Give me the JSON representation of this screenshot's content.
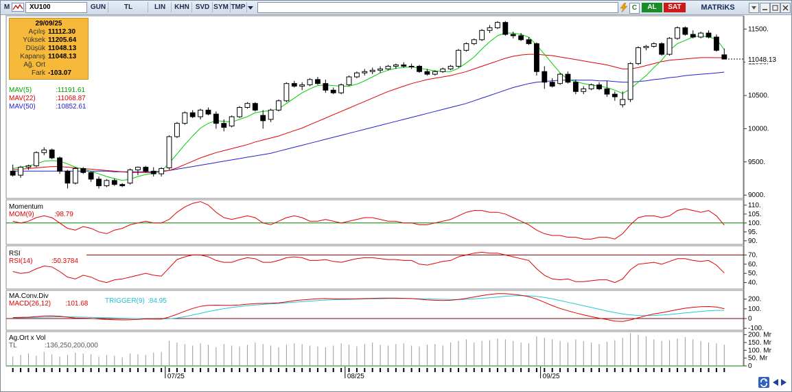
{
  "toolbar": {
    "menu_letter": "M",
    "symbol": "XU100",
    "buttons": [
      "GUN",
      "TL",
      "LIN",
      "KHN",
      "SVD",
      "SYM",
      "TMP"
    ],
    "al_label": "AL",
    "sat_label": "SAT",
    "brand": "MATRiKS",
    "c_label": "C"
  },
  "info_box": {
    "date": "29/09/25",
    "rows": [
      {
        "label": "Açılış",
        "value": "11112.30"
      },
      {
        "label": "Yüksek",
        "value": "11205.64"
      },
      {
        "label": "Düşük",
        "value": "11048.13"
      },
      {
        "label": "Kapanış",
        "value": "11048.13"
      },
      {
        "label": "Ağ. Ort",
        "value": ""
      },
      {
        "label": "Fark",
        "value": "-103.07"
      }
    ]
  },
  "price_panel": {
    "mav5": {
      "label": "MAV(5)",
      "value": ":11191.61",
      "color": "#00c000"
    },
    "mav22": {
      "label": "MAV(22)",
      "value": ":11068.87",
      "color": "#e00000"
    },
    "mav50": {
      "label": "MAV(50)",
      "value": ":10852.61",
      "color": "#2020d0"
    },
    "last_price_tag": "11048.13",
    "axis_ticks": [
      "11500.",
      "11000.",
      "10500.",
      "10000.",
      "9500.",
      "9000."
    ]
  },
  "momentum_panel": {
    "title": "Momentum",
    "indicator": "MOM(9)",
    "value": ":98.79",
    "axis_ticks": [
      "110.",
      "105.",
      "100.",
      "95.",
      "90."
    ]
  },
  "rsi_panel": {
    "title": "RSI",
    "indicator": "RSI(14)",
    "value": ":50.3784",
    "axis_ticks": [
      "70.",
      "60.",
      "50.",
      "40."
    ]
  },
  "macd_panel": {
    "title": "MA.Conv.Div",
    "indicator": "MACD(26,12)",
    "value": ":101.68",
    "trigger": "TRIGGER(9)",
    "trigger_value": ":84.95",
    "axis_ticks": [
      "200.",
      "100.",
      "0",
      "-100."
    ]
  },
  "volume_panel": {
    "title": "Ag.Ort x Vol",
    "unit": "TL",
    "value": ":136,250,200,000",
    "axis_ticks": [
      "200. Mr",
      "150. Mr",
      "100. Mr",
      "50. Mr",
      "0"
    ]
  },
  "date_axis": [
    "07/25",
    "08/25",
    "09/25"
  ],
  "colors": {
    "toolbar_bg": "#d6e0ec",
    "info_bg": "#f6b93a",
    "al_bg": "#1a8c2a",
    "sat_bg": "#cc1a1a",
    "up_candle": "#ffffff",
    "down_candle": "#000000"
  },
  "chart_data": {
    "type": "candlestick",
    "series_ohlc": [
      [
        9360,
        9460,
        9280,
        9300
      ],
      [
        9300,
        9440,
        9260,
        9420
      ],
      [
        9420,
        9460,
        9380,
        9440
      ],
      [
        9440,
        9660,
        9420,
        9640
      ],
      [
        9640,
        9720,
        9600,
        9680
      ],
      [
        9680,
        9700,
        9540,
        9560
      ],
      [
        9560,
        9580,
        9320,
        9360
      ],
      [
        9360,
        9380,
        9100,
        9180
      ],
      [
        9180,
        9420,
        9160,
        9400
      ],
      [
        9400,
        9420,
        9320,
        9340
      ],
      [
        9340,
        9360,
        9200,
        9240
      ],
      [
        9240,
        9280,
        9100,
        9140
      ],
      [
        9140,
        9240,
        9120,
        9220
      ],
      [
        9220,
        9250,
        9140,
        9160
      ],
      [
        9160,
        9180,
        9120,
        9140
      ],
      [
        9180,
        9400,
        9160,
        9380
      ],
      [
        9380,
        9430,
        9300,
        9420
      ],
      [
        9420,
        9440,
        9340,
        9360
      ],
      [
        9360,
        9420,
        9280,
        9320
      ],
      [
        9320,
        9420,
        9280,
        9400
      ],
      [
        9410,
        9900,
        9380,
        9880
      ],
      [
        9880,
        10100,
        9860,
        10080
      ],
      [
        10080,
        10260,
        10060,
        10240
      ],
      [
        10240,
        10280,
        10160,
        10180
      ],
      [
        10180,
        10300,
        10140,
        10280
      ],
      [
        10280,
        10320,
        10200,
        10220
      ],
      [
        10220,
        10260,
        10000,
        10080
      ],
      [
        10080,
        10140,
        9960,
        10020
      ],
      [
        10040,
        10200,
        10020,
        10180
      ],
      [
        10180,
        10340,
        10160,
        10320
      ],
      [
        10320,
        10400,
        10300,
        10380
      ],
      [
        10380,
        10400,
        10260,
        10280
      ],
      [
        10200,
        10280,
        10000,
        10120
      ],
      [
        10140,
        10300,
        10100,
        10280
      ],
      [
        10280,
        10440,
        10260,
        10420
      ],
      [
        10420,
        10700,
        10400,
        10680
      ],
      [
        10680,
        10720,
        10620,
        10640
      ],
      [
        10640,
        10700,
        10580,
        10660
      ],
      [
        10660,
        10760,
        10640,
        10740
      ],
      [
        10740,
        10780,
        10660,
        10680
      ],
      [
        10680,
        10740,
        10540,
        10580
      ],
      [
        10580,
        10620,
        10520,
        10540
      ],
      [
        10540,
        10680,
        10520,
        10660
      ],
      [
        10660,
        10800,
        10640,
        10780
      ],
      [
        10780,
        10860,
        10760,
        10840
      ],
      [
        10840,
        10900,
        10800,
        10860
      ],
      [
        10860,
        10920,
        10820,
        10880
      ],
      [
        10880,
        10940,
        10840,
        10900
      ],
      [
        10900,
        10960,
        10880,
        10940
      ],
      [
        10940,
        10980,
        10900,
        10960
      ],
      [
        10960,
        11000,
        10920,
        10940
      ],
      [
        10940,
        10980,
        10900,
        10940
      ],
      [
        10940,
        10960,
        10840,
        10860
      ],
      [
        10860,
        10900,
        10800,
        10820
      ],
      [
        10820,
        10880,
        10800,
        10860
      ],
      [
        10860,
        10920,
        10840,
        10900
      ],
      [
        10900,
        10960,
        10880,
        10940
      ],
      [
        10940,
        11200,
        10920,
        11180
      ],
      [
        11180,
        11300,
        11160,
        11280
      ],
      [
        11280,
        11360,
        11260,
        11340
      ],
      [
        11340,
        11500,
        11320,
        11480
      ],
      [
        11480,
        11560,
        11440,
        11520
      ],
      [
        11520,
        11620,
        11500,
        11600
      ],
      [
        11600,
        11620,
        11400,
        11420
      ],
      [
        11420,
        11460,
        11360,
        11400
      ],
      [
        11400,
        11440,
        11320,
        11340
      ],
      [
        11340,
        11380,
        11260,
        11280
      ],
      [
        11280,
        11300,
        10800,
        10860
      ],
      [
        10860,
        10940,
        10600,
        10700
      ],
      [
        10700,
        10760,
        10620,
        10640
      ],
      [
        10680,
        10840,
        10660,
        10820
      ],
      [
        10820,
        10860,
        10680,
        10700
      ],
      [
        10700,
        10740,
        10520,
        10560
      ],
      [
        10560,
        10640,
        10520,
        10600
      ],
      [
        10600,
        10680,
        10580,
        10660
      ],
      [
        10660,
        10700,
        10580,
        10600
      ],
      [
        10600,
        10720,
        10480,
        10520
      ],
      [
        10520,
        10560,
        10420,
        10480
      ],
      [
        10360,
        10560,
        10320,
        10440
      ],
      [
        10440,
        11000,
        10400,
        10980
      ],
      [
        10980,
        11240,
        10960,
        11220
      ],
      [
        11220,
        11260,
        11180,
        11240
      ],
      [
        11240,
        11300,
        11220,
        11280
      ],
      [
        11280,
        11300,
        11100,
        11120
      ],
      [
        11120,
        11380,
        11100,
        11360
      ],
      [
        11360,
        11540,
        11340,
        11520
      ],
      [
        11520,
        11540,
        11400,
        11420
      ],
      [
        11420,
        11480,
        11360,
        11380
      ],
      [
        11380,
        11460,
        11360,
        11440
      ],
      [
        11440,
        11480,
        11360,
        11380
      ],
      [
        11380,
        11420,
        11160,
        11180
      ],
      [
        11112.3,
        11205.64,
        11048.13,
        11048.13
      ]
    ],
    "mav5": [
      9400,
      9420,
      9440,
      9470,
      9510,
      9520,
      9510,
      9470,
      9420,
      9390,
      9360,
      9320,
      9280,
      9250,
      9220,
      9240,
      9280,
      9310,
      9330,
      9360,
      9480,
      9620,
      9760,
      9890,
      10010,
      10080,
      10120,
      10110,
      10100,
      10140,
      10180,
      10240,
      10260,
      10270,
      10300,
      10380,
      10460,
      10540,
      10600,
      10650,
      10660,
      10650,
      10640,
      10640,
      10670,
      10720,
      10780,
      10840,
      10880,
      10910,
      10920,
      10930,
      10910,
      10890,
      10870,
      10860,
      10860,
      10910,
      10990,
      11080,
      11200,
      11310,
      11400,
      11440,
      11440,
      11420,
      11380,
      11260,
      11120,
      10980,
      10840,
      10740,
      10710,
      10680,
      10660,
      10640,
      10620,
      10580,
      10530,
      10600,
      10700,
      10800,
      10920,
      11030,
      11180,
      11280,
      11330,
      11380,
      11400,
      11380,
      11350,
      11191.61
    ],
    "mav22": [
      9380,
      9390,
      9400,
      9410,
      9420,
      9430,
      9430,
      9420,
      9410,
      9400,
      9390,
      9380,
      9370,
      9360,
      9350,
      9340,
      9340,
      9340,
      9340,
      9350,
      9370,
      9410,
      9460,
      9510,
      9560,
      9600,
      9640,
      9670,
      9700,
      9730,
      9760,
      9800,
      9830,
      9860,
      9890,
      9930,
      9970,
      10010,
      10060,
      10110,
      10160,
      10210,
      10260,
      10310,
      10360,
      10410,
      10460,
      10510,
      10560,
      10600,
      10640,
      10680,
      10710,
      10740,
      10760,
      10780,
      10800,
      10830,
      10860,
      10900,
      10940,
      10980,
      11020,
      11060,
      11090,
      11110,
      11120,
      11120,
      11110,
      11100,
      11080,
      11060,
      11040,
      11020,
      11000,
      10980,
      10960,
      10930,
      10900,
      10900,
      10920,
      10950,
      10980,
      11010,
      11030,
      11040,
      11050,
      11060,
      11070,
      11070,
      11068.87,
      11068.87
    ],
    "mav50": [
      9360,
      9360,
      9360,
      9360,
      9360,
      9360,
      9360,
      9360,
      9360,
      9360,
      9360,
      9360,
      9360,
      9350,
      9350,
      9350,
      9350,
      9350,
      9350,
      9360,
      9370,
      9390,
      9410,
      9430,
      9450,
      9470,
      9490,
      9510,
      9530,
      9550,
      9570,
      9590,
      9610,
      9630,
      9660,
      9690,
      9720,
      9750,
      9780,
      9810,
      9840,
      9870,
      9900,
      9930,
      9960,
      9990,
      10020,
      10050,
      10080,
      10110,
      10140,
      10170,
      10200,
      10230,
      10260,
      10290,
      10320,
      10350,
      10380,
      10420,
      10460,
      10500,
      10540,
      10580,
      10620,
      10650,
      10680,
      10700,
      10710,
      10720,
      10730,
      10730,
      10730,
      10730,
      10730,
      10720,
      10720,
      10710,
      10700,
      10700,
      10710,
      10720,
      10740,
      10750,
      10770,
      10780,
      10800,
      10810,
      10820,
      10830,
      10840,
      10852.61
    ],
    "momentum": [
      101,
      100,
      101,
      103,
      104,
      103,
      100,
      97,
      96,
      98,
      97,
      95,
      94,
      96,
      97,
      99,
      100,
      101,
      100,
      100,
      102,
      106,
      109,
      111,
      112,
      110,
      106,
      103,
      102,
      103,
      104,
      103,
      100,
      99,
      101,
      103,
      104,
      103,
      101,
      101,
      102,
      101,
      100,
      101,
      102,
      103,
      103,
      102,
      101,
      101,
      100,
      100,
      99,
      99,
      100,
      101,
      102,
      104,
      106,
      107,
      107,
      106,
      106,
      105,
      103,
      101,
      99,
      96,
      94,
      93,
      93,
      92,
      92,
      91,
      91,
      92,
      92,
      91,
      94,
      99,
      103,
      104,
      104,
      103,
      104,
      107,
      108,
      107,
      106,
      107,
      104,
      98.79
    ],
    "rsi": [
      52,
      50,
      51,
      55,
      58,
      57,
      52,
      46,
      44,
      48,
      46,
      42,
      40,
      43,
      44,
      46,
      48,
      50,
      48,
      47,
      56,
      65,
      68,
      70,
      70,
      68,
      64,
      62,
      62,
      65,
      67,
      66,
      62,
      62,
      64,
      67,
      68,
      67,
      64,
      64,
      65,
      63,
      62,
      64,
      66,
      67,
      67,
      66,
      65,
      65,
      64,
      64,
      60,
      59,
      61,
      63,
      64,
      68,
      70,
      72,
      73,
      72,
      72,
      70,
      68,
      66,
      64,
      55,
      48,
      44,
      43,
      44,
      41,
      41,
      42,
      43,
      43,
      40,
      44,
      54,
      60,
      61,
      62,
      60,
      63,
      66,
      66,
      64,
      63,
      64,
      59,
      50.38
    ],
    "macd": [
      10,
      12,
      14,
      20,
      26,
      28,
      24,
      14,
      6,
      4,
      2,
      -4,
      -10,
      -12,
      -14,
      -12,
      -8,
      -4,
      -6,
      -6,
      16,
      44,
      76,
      104,
      126,
      136,
      138,
      136,
      136,
      140,
      148,
      154,
      156,
      158,
      162,
      172,
      184,
      192,
      198,
      204,
      206,
      204,
      202,
      202,
      204,
      206,
      208,
      210,
      210,
      210,
      208,
      206,
      200,
      192,
      188,
      186,
      188,
      196,
      208,
      222,
      236,
      248,
      256,
      256,
      250,
      240,
      226,
      200,
      168,
      134,
      104,
      80,
      58,
      38,
      20,
      4,
      -10,
      -26,
      -30,
      -14,
      8,
      30,
      48,
      60,
      76,
      92,
      106,
      116,
      122,
      124,
      118,
      101.68
    ],
    "trigger": [
      6,
      8,
      10,
      12,
      14,
      16,
      18,
      18,
      16,
      14,
      12,
      10,
      8,
      6,
      4,
      2,
      0,
      -2,
      -3,
      -4,
      -2,
      6,
      20,
      36,
      54,
      72,
      88,
      102,
      114,
      124,
      132,
      140,
      146,
      152,
      156,
      162,
      168,
      174,
      180,
      186,
      190,
      194,
      196,
      198,
      200,
      202,
      204,
      204,
      206,
      206,
      206,
      206,
      204,
      202,
      200,
      198,
      196,
      196,
      198,
      202,
      208,
      214,
      222,
      230,
      234,
      236,
      234,
      228,
      218,
      204,
      186,
      168,
      150,
      132,
      114,
      96,
      78,
      62,
      48,
      38,
      32,
      30,
      32,
      36,
      42,
      50,
      58,
      66,
      74,
      80,
      84,
      84.95
    ],
    "volume_bn": [
      60,
      70,
      80,
      65,
      90,
      75,
      60,
      70,
      85,
      80,
      75,
      60,
      70,
      65,
      55,
      80,
      75,
      70,
      85,
      90,
      160,
      150,
      140,
      130,
      145,
      135,
      120,
      140,
      130,
      125,
      135,
      150,
      140,
      130,
      120,
      135,
      145,
      140,
      130,
      125,
      120,
      130,
      145,
      135,
      125,
      140,
      150,
      135,
      130,
      140,
      145,
      130,
      125,
      135,
      140,
      130,
      150,
      160,
      170,
      150,
      160,
      165,
      175,
      170,
      160,
      150,
      145,
      190,
      180,
      170,
      160,
      150,
      170,
      160,
      150,
      140,
      155,
      165,
      180,
      210,
      200,
      190,
      170,
      160,
      165,
      175,
      185,
      170,
      160,
      150,
      145,
      136.25
    ],
    "xlabel": "",
    "ylabel": ""
  }
}
